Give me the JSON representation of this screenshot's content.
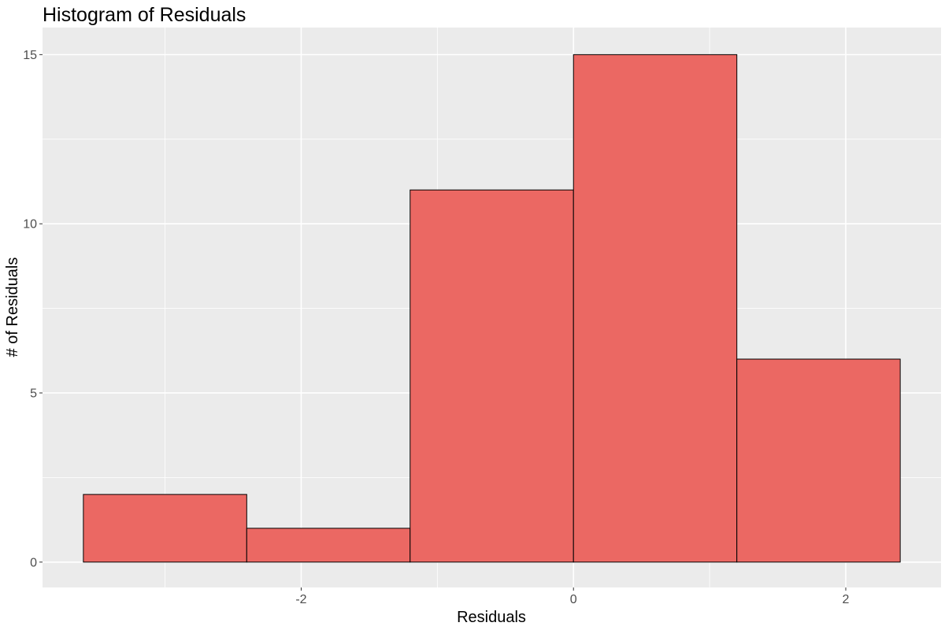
{
  "chart_data": {
    "type": "bar",
    "title": "Histogram of Residuals",
    "xlabel": "Residuals",
    "ylabel": "# of Residuals",
    "bins": [
      {
        "start": -3.6,
        "end": -2.4,
        "count": 2
      },
      {
        "start": -2.4,
        "end": -1.2,
        "count": 1
      },
      {
        "start": -1.2,
        "end": 0.0,
        "count": 11
      },
      {
        "start": 0.0,
        "end": 1.2,
        "count": 15
      },
      {
        "start": 1.2,
        "end": 2.4,
        "count": 6
      }
    ],
    "xlim": [
      -3.9,
      2.7
    ],
    "ylim": [
      -0.75,
      15.8
    ],
    "x_ticks": [
      -2,
      0,
      2
    ],
    "x_tick_labels": [
      "-2",
      "0",
      "2"
    ],
    "y_ticks": [
      0,
      5,
      10,
      15
    ],
    "y_tick_labels": [
      "0",
      "5",
      "10",
      "15"
    ],
    "grid": true,
    "legend": "none"
  },
  "colors": {
    "panel_background": "#ebebeb",
    "gridline": "#ffffff",
    "bar_fill": "#eb6863",
    "bar_outline": "#000000",
    "tick_text": "#4d4d4d",
    "title_text": "#000000"
  }
}
